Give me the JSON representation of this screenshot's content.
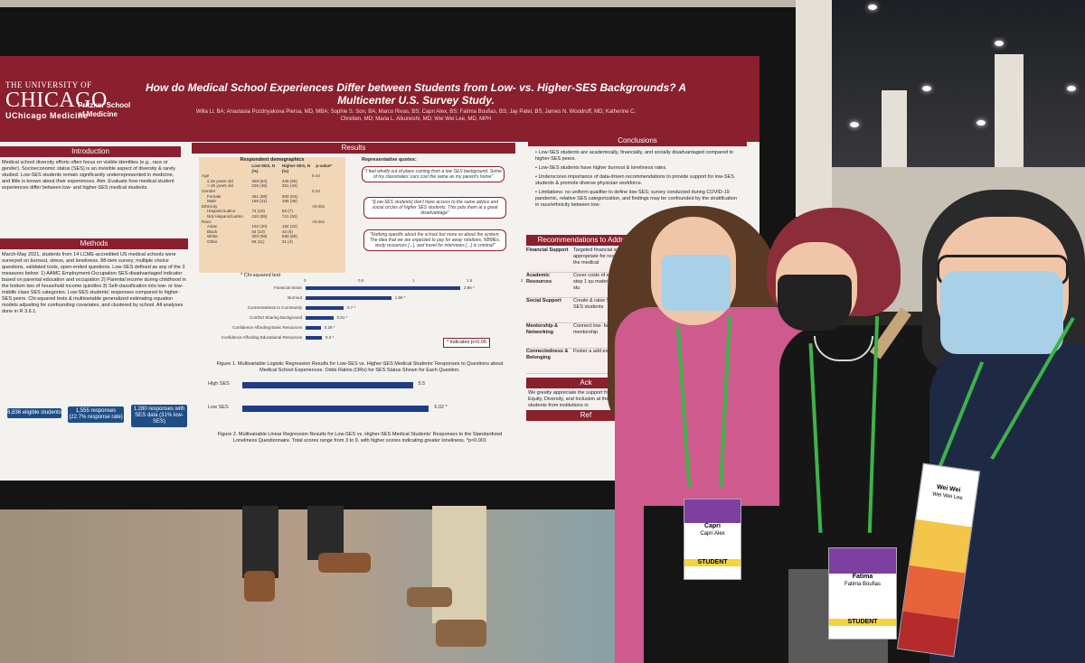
{
  "poster": {
    "logo_line1": "THE UNIVERSITY OF",
    "logo_line2": "CHICAGO",
    "logo_line3": "UChicago Medicine",
    "school": "Pritzker School of Medicine",
    "title": "How do Medical School Experiences Differ between Students from Low- vs. Higher-SES Backgrounds? A Multicenter U.S. Survey Study.",
    "authors": "Willa Li, BA; Anastasia Pozdnyakova Piersa, MD, MBA; Sophie S. Son, BA; Marco Rivas, BS; Capri Alex, BS; Fatima Boufias, BS; Jay Patel, BS; James N. Woodruff, MD; Katherine C. Chretien, MD; Maria L. Alkureishi, MD; Wei Wei Lee, MD, MPH",
    "sections": {
      "introduction": "Introduction",
      "methods": "Methods",
      "results": "Results",
      "conclusions": "Conclusions",
      "recommendations": "Recommendations to Address",
      "acknowledgements": "Ack",
      "references": "Ref"
    },
    "intro_text": "Medical school diversity efforts often focus on visible identities (e.g., race or gender). Socioeconomic status (SES) is an invisible aspect of diversity & rarely studied. Low-SES students remain significantly underrepresented in medicine, and little is known about their experiences. Aim: Evaluate how medical student experiences differ between low- and higher-SES medical students.",
    "methods_text": "March-May 2021, students from 14 LCME-accredited US medical schools were surveyed on burnout, stress, and loneliness. 88-item survey; multiple choice questions, validated tools, open-ended questions. Low-SES defined as any of the 3 measures below: 1) AAMC Employment-Occupation SES-disadvantaged indicator based on parental education and occupation 2) Parental income during childhood in the bottom two of household income quintiles 3) Self-classification into low- or low-middle class SES categories. Low-SES students' responses compared to higher-SES peers. Chi-squared tests & multivariable generalized estimating equation models adjusting for confounding covariates, and clustered by school. All analyses done in R 3.6.1.",
    "stats": [
      "6,836 eligible students",
      "1,555 responses (22.7% response rate)",
      "1,280 responses with SES data (31% low-SES)"
    ],
    "demographics_title": "Respondent demographics",
    "demo_header": [
      "",
      "Low-SES, N (%)",
      "Higher-SES, N (%)",
      "p-value*"
    ],
    "demo_rows": [
      [
        "Age",
        "",
        "",
        "0.44"
      ],
      [
        "≤ 25 years old",
        "259 (54)",
        "445 (56)",
        ""
      ],
      [
        "> 25 years old",
        "225 (46)",
        "351 (44)",
        ""
      ],
      [
        "Gender",
        "",
        "",
        "0.24"
      ],
      [
        "Female",
        "281 (58)",
        "500 (63)",
        ""
      ],
      [
        "Male",
        "195 (41)",
        "285 (36)",
        ""
      ],
      [
        "Ethnicity",
        "",
        "",
        "<0.001"
      ],
      [
        "Hispanic/Latino",
        "74 (15)",
        "55 (7)",
        ""
      ],
      [
        "Not Hispanic/Latino",
        "410 (85)",
        "741 (93)",
        ""
      ],
      [
        "Race",
        "",
        "",
        "<0.001"
      ],
      [
        "Asian",
        "102 (20)",
        "184 (22)",
        ""
      ],
      [
        "Black",
        "54 (10)",
        "42 (5)",
        ""
      ],
      [
        "White",
        "303 (59)",
        "580 (69)",
        ""
      ],
      [
        "Other",
        "56 (11)",
        "31 (4)",
        ""
      ]
    ],
    "chi_note": "* Chi-squared test",
    "quotes_title": "Representative quotes:",
    "quotes": [
      "\"I feel wholly out of place coming from a low SES background. Some of my classmates' cars cost the same as my parent's home\"",
      "\"[Low-SES students] don't have access to the same advice and social circles of higher SES students. This puts them at a great disadvantage\"",
      "\"Nothing specific about the school but more so about the system. The idea that we are expected to pay for away rotations, NBMEs, study resources [...], and travel for interviews [...] is criminal\""
    ],
    "fig1_labels": [
      "Financial Strain",
      "Burnout",
      "Connectedness to Community",
      "Comfort Sharing Background",
      "Confidence Affording Basic Resources",
      "Confidence Affording Educational Resources"
    ],
    "fig1_values": [
      "2.85 *",
      "1.58 *",
      "0.7 *",
      "0.51 *",
      "0.28 *",
      "0.3 *"
    ],
    "fig1_ticks": [
      "0",
      "0.5",
      "1",
      "1.5",
      "2",
      "2.5",
      "3",
      "3.5"
    ],
    "fig1_note": "* indicates p<0.05",
    "fig1_caption": "Figure 1. Multivariable Logistic Regression Results for Low-SES vs. Higher-SES Medical Students' Responses to Questions about Medical School Experiences. Odds Ratios (ORs) for SES Status Shown for Each Question.",
    "fig2_labels": [
      "High SES",
      "Low SES"
    ],
    "fig2_values": [
      "5.5",
      "6.02 *"
    ],
    "fig2_caption": "Figure 2. Multivariable Linear Regression Results for Low-SES vs. Higher-SES Medical Students' Responses to the Standardized Loneliness Questionnaire. Total scores range from 3 to 9, with higher scores indicating greater loneliness. *p<0.001",
    "conclusions": [
      "Low-SES students are academically, financially, and socially disadvantaged compared to higher-SES peers.",
      "Low-SES students have higher burnout & loneliness rates.",
      "Underscores importance of data-driven recommendations to provide support for low-SES students & promote diverse physician workforce.",
      "Limitations: no uniform qualifier to define low-SES; survey conducted during COVID-19 pandemic, relative SES categorization, and findings may be confounded by the stratification in race/ethnicity between low-"
    ],
    "rec_rows": [
      [
        "Financial Support",
        "Targeted financial support appropriate for resources part of the medical"
      ],
      [
        "Academic Resources",
        "Cover costs of exam USMLE step 1 qu materials for low-SES stu"
      ],
      [
        "Social Support",
        "Create & raise SES students SES students"
      ],
      [
        "Mentorship & Networking",
        "Connect low- backgrounds mentorship"
      ],
      [
        "Connectedness & Belonging",
        "Foster a add experiences"
      ]
    ],
    "ack_text": "We greatly appreciate the support from the Office of Equity, Diversity, and Inclusion at the medical students from institutions in"
  },
  "badges": [
    {
      "first": "Capri",
      "full": "Capri Alex",
      "tag": "STUDENT"
    },
    {
      "first": "Fatima",
      "full": "Fatima Boufias",
      "tag": "STUDENT"
    },
    {
      "first": "Wei Wei",
      "full": "Wei Wei Lee",
      "tag": ""
    }
  ],
  "colors": {
    "maroon": "#8a1f2d",
    "lanyard": "#3db34a",
    "blue_bar": "#1f3d86"
  }
}
